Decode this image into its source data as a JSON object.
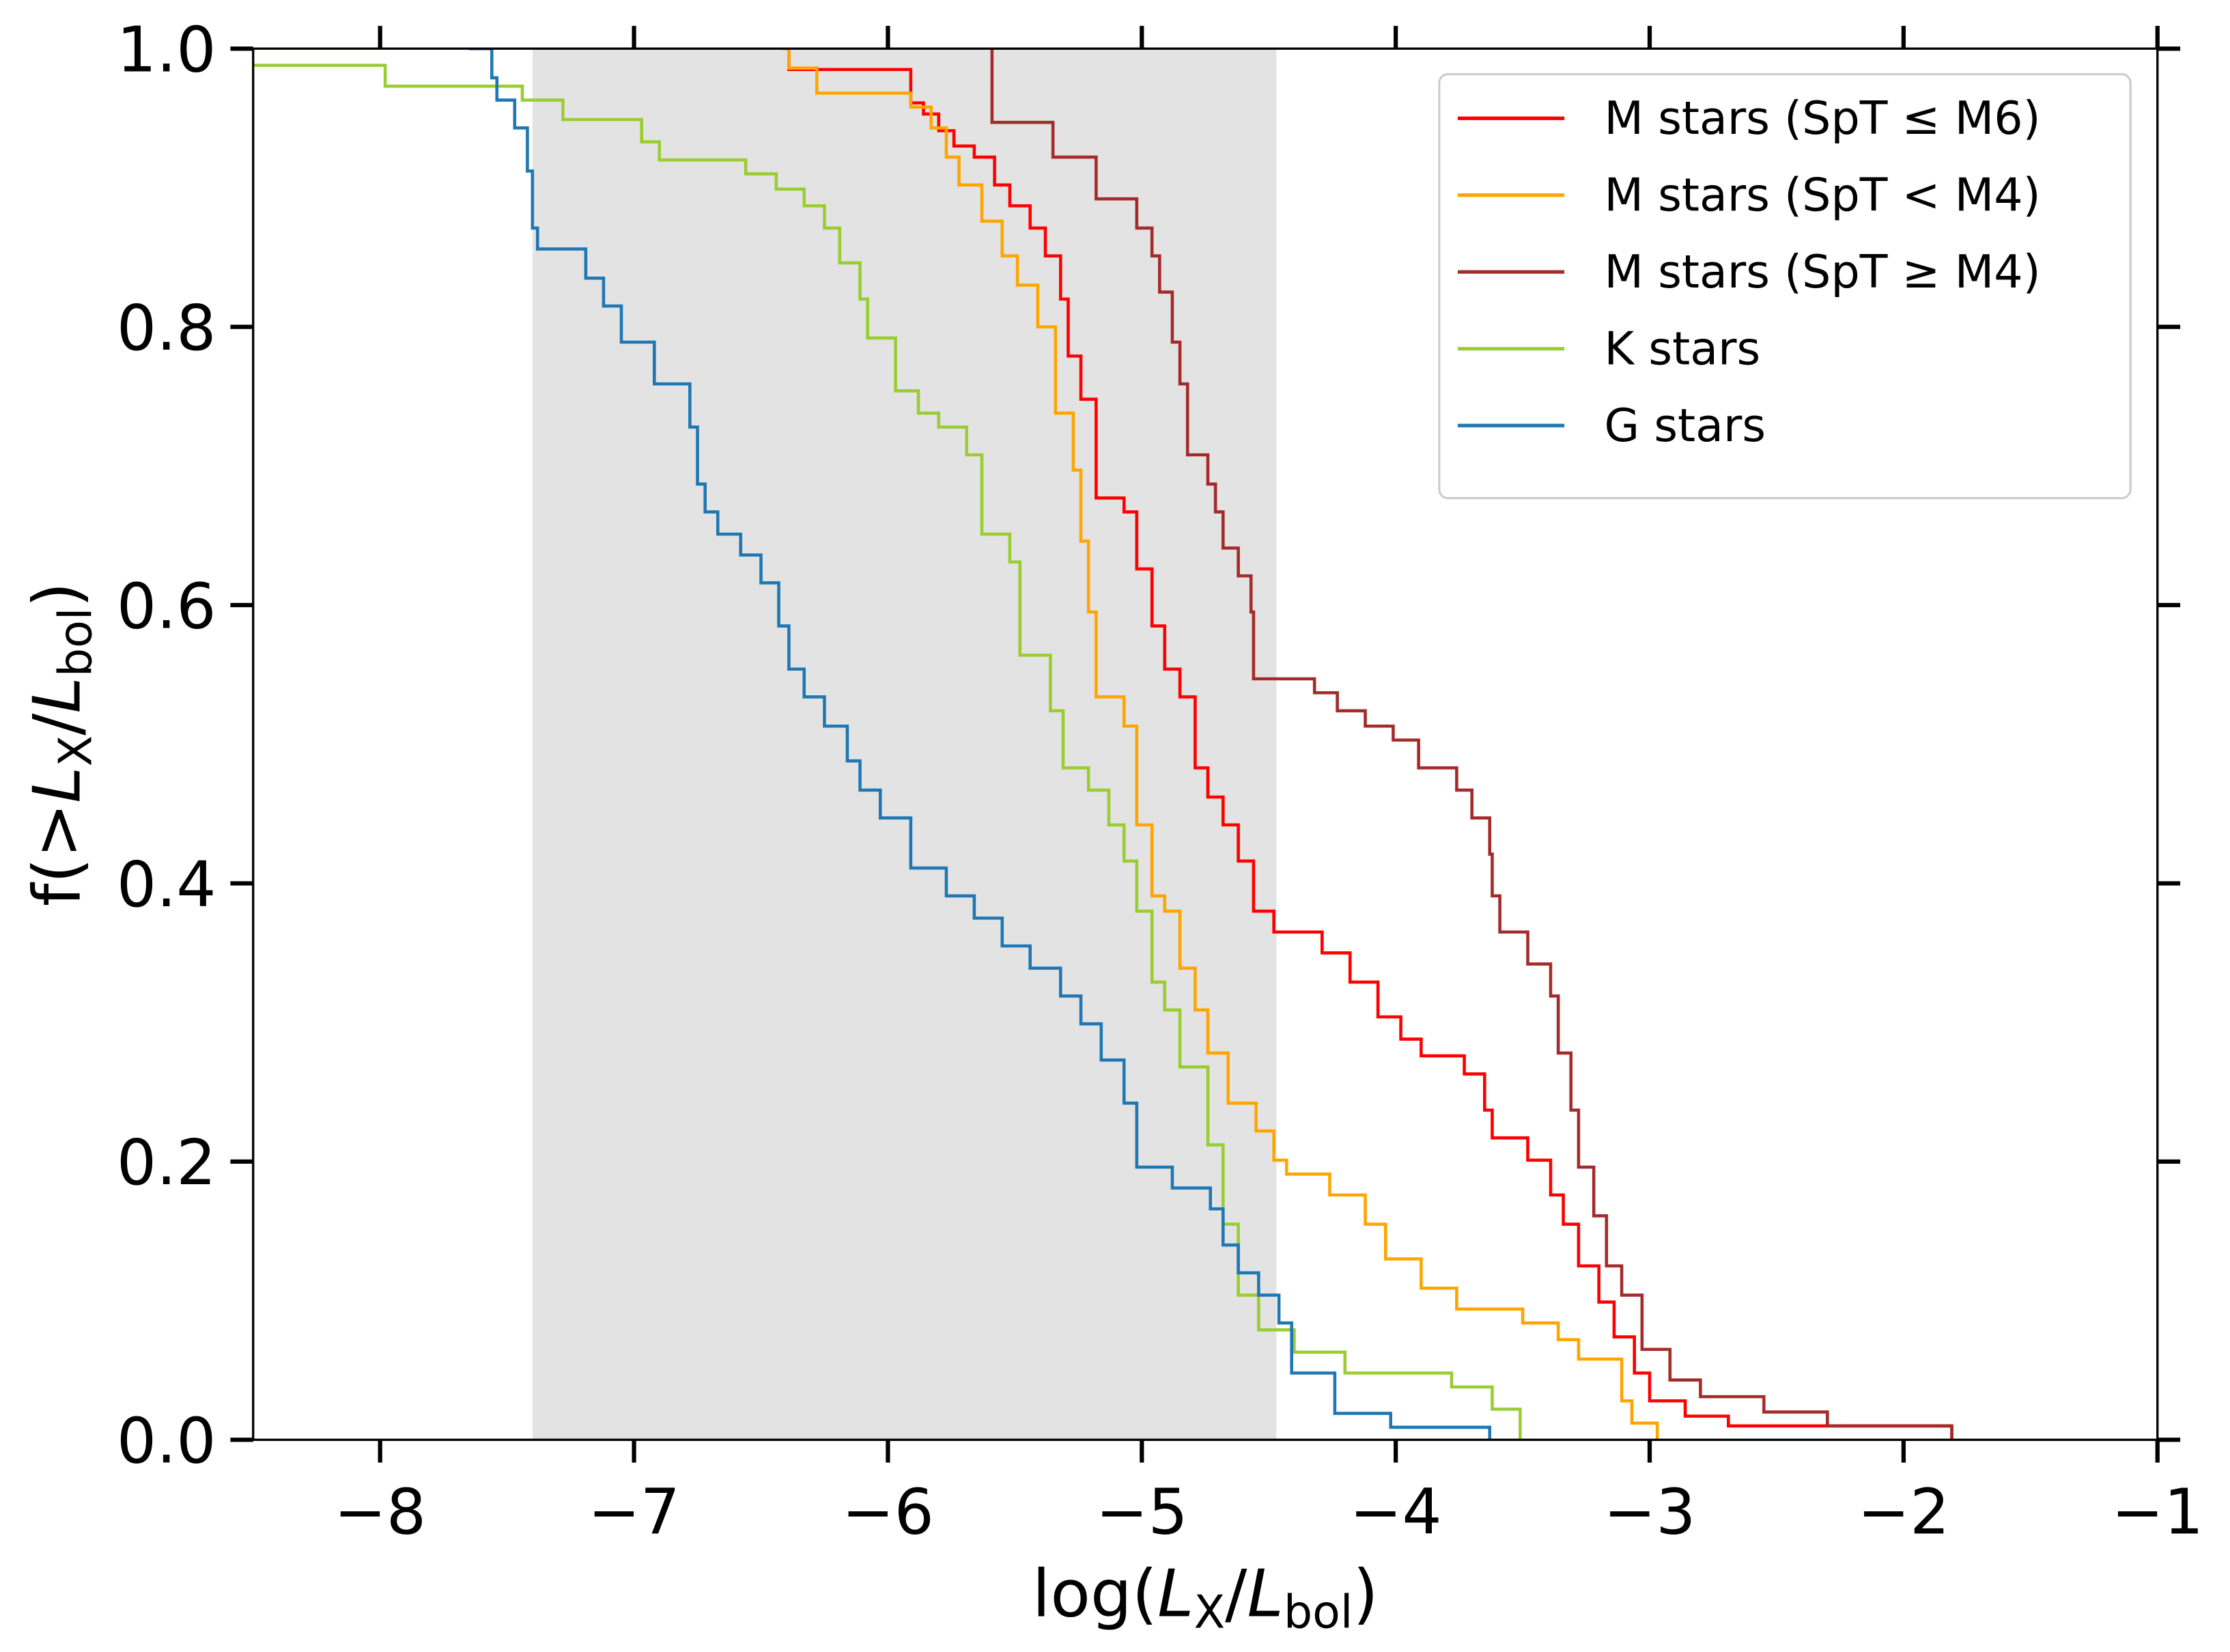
{
  "chart_data": {
    "type": "step",
    "xlabel": [
      "log(",
      "L",
      "X",
      "/",
      "L",
      "bol",
      ")"
    ],
    "ylabel": [
      "f(>",
      "L",
      "X",
      "/",
      "L",
      "bol",
      ")"
    ],
    "xlim": [
      -8.5,
      -1
    ],
    "ylim": [
      0,
      1
    ],
    "xticks": [
      {
        "value": -8,
        "label": "−8"
      },
      {
        "value": -7,
        "label": "−7"
      },
      {
        "value": -6,
        "label": "−6"
      },
      {
        "value": -5,
        "label": "−5"
      },
      {
        "value": -4,
        "label": "−4"
      },
      {
        "value": -3,
        "label": "−3"
      },
      {
        "value": -2,
        "label": "−2"
      },
      {
        "value": -1,
        "label": "−1"
      }
    ],
    "yticks": [
      {
        "value": 0,
        "label": "0.0"
      },
      0.2,
      0.4,
      0.6,
      0.8,
      {
        "value": 1,
        "label": "1.0"
      }
    ],
    "ticks_all_sides": true,
    "shade": {
      "range": [
        -7.4,
        -4.47
      ],
      "color": "#e3e3e3"
    },
    "legend": "upper right",
    "series": [
      {
        "name": "M stars (SpT ≤ M6)",
        "color": "#ff0000",
        "x": [
          -6.42,
          -6.39,
          -5.91,
          -5.86,
          -5.8,
          -5.74,
          -5.66,
          -5.58,
          -5.52,
          -5.44,
          -5.38,
          -5.32,
          -5.29,
          -5.24,
          -5.18,
          -5.07,
          -5.02,
          -4.96,
          -4.91,
          -4.85,
          -4.79,
          -4.74,
          -4.68,
          -4.62,
          -4.56,
          -4.48,
          -4.29,
          -4.18,
          -4.07,
          -3.98,
          -3.9,
          -3.73,
          -3.65,
          -3.62,
          -3.48,
          -3.39,
          -3.34,
          -3.28,
          -3.2,
          -3.14,
          -3.06,
          -3.0,
          -2.86,
          -2.69,
          -1.81
        ],
        "values": [
          1.0,
          0.985,
          0.961,
          0.953,
          0.941,
          0.93,
          0.922,
          0.902,
          0.887,
          0.871,
          0.851,
          0.82,
          0.779,
          0.748,
          0.677,
          0.667,
          0.626,
          0.585,
          0.554,
          0.534,
          0.483,
          0.462,
          0.442,
          0.416,
          0.38,
          0.365,
          0.35,
          0.329,
          0.304,
          0.288,
          0.276,
          0.263,
          0.237,
          0.217,
          0.201,
          0.176,
          0.155,
          0.125,
          0.099,
          0.074,
          0.048,
          0.028,
          0.017,
          0.01,
          0
        ]
      },
      {
        "name": "M stars (SpT < M4)",
        "color": "#ffa500",
        "x": [
          -6.42,
          -6.39,
          -6.28,
          -5.91,
          -5.83,
          -5.77,
          -5.72,
          -5.63,
          -5.55,
          -5.49,
          -5.41,
          -5.34,
          -5.27,
          -5.24,
          -5.21,
          -5.18,
          -5.07,
          -5.02,
          -4.96,
          -4.91,
          -4.85,
          -4.79,
          -4.74,
          -4.66,
          -4.55,
          -4.48,
          -4.43,
          -4.26,
          -4.12,
          -4.04,
          -3.9,
          -3.76,
          -3.5,
          -3.36,
          -3.28,
          -3.11,
          -3.07,
          -2.97
        ],
        "values": [
          1.0,
          0.986,
          0.968,
          0.958,
          0.943,
          0.922,
          0.902,
          0.876,
          0.851,
          0.83,
          0.8,
          0.738,
          0.697,
          0.646,
          0.595,
          0.534,
          0.513,
          0.442,
          0.391,
          0.38,
          0.339,
          0.309,
          0.278,
          0.242,
          0.222,
          0.201,
          0.191,
          0.176,
          0.155,
          0.13,
          0.109,
          0.094,
          0.084,
          0.072,
          0.058,
          0.028,
          0.012,
          0
        ]
      },
      {
        "name": "M stars (SpT ≥ M4)",
        "color": "#a52a2a",
        "x": [
          -5.59,
          -5.59,
          -5.35,
          -5.18,
          -5.02,
          -4.96,
          -4.93,
          -4.88,
          -4.85,
          -4.82,
          -4.74,
          -4.71,
          -4.68,
          -4.62,
          -4.57,
          -4.56,
          -4.32,
          -4.23,
          -4.12,
          -4.01,
          -3.91,
          -3.76,
          -3.7,
          -3.63,
          -3.62,
          -3.59,
          -3.48,
          -3.39,
          -3.36,
          -3.31,
          -3.28,
          -3.22,
          -3.17,
          -3.11,
          -3.03,
          -2.92,
          -2.8,
          -2.55,
          -2.3,
          -1.81
        ],
        "values": [
          1.0,
          0.947,
          0.922,
          0.892,
          0.871,
          0.851,
          0.825,
          0.789,
          0.759,
          0.708,
          0.687,
          0.667,
          0.641,
          0.621,
          0.595,
          0.547,
          0.537,
          0.524,
          0.513,
          0.503,
          0.483,
          0.467,
          0.447,
          0.421,
          0.391,
          0.365,
          0.342,
          0.319,
          0.278,
          0.237,
          0.196,
          0.161,
          0.125,
          0.104,
          0.065,
          0.043,
          0.031,
          0.02,
          0.01,
          0
        ]
      },
      {
        "name": "K stars",
        "color": "#9acd32",
        "x": [
          -8.5,
          -7.98,
          -7.44,
          -7.28,
          -6.97,
          -6.9,
          -6.56,
          -6.44,
          -6.33,
          -6.25,
          -6.19,
          -6.11,
          -6.08,
          -5.97,
          -5.88,
          -5.8,
          -5.69,
          -5.63,
          -5.52,
          -5.48,
          -5.36,
          -5.31,
          -5.21,
          -5.13,
          -5.07,
          -5.02,
          -4.96,
          -4.91,
          -4.85,
          -4.74,
          -4.68,
          -4.62,
          -4.54,
          -4.4,
          -4.2,
          -3.78,
          -3.62,
          -3.51
        ],
        "values": [
          0.988,
          0.973,
          0.963,
          0.949,
          0.933,
          0.92,
          0.91,
          0.899,
          0.887,
          0.871,
          0.846,
          0.82,
          0.792,
          0.754,
          0.738,
          0.728,
          0.708,
          0.651,
          0.631,
          0.564,
          0.524,
          0.483,
          0.467,
          0.442,
          0.416,
          0.38,
          0.329,
          0.309,
          0.268,
          0.212,
          0.155,
          0.104,
          0.079,
          0.063,
          0.048,
          0.038,
          0.022,
          0
        ]
      },
      {
        "name": "G stars",
        "color": "#1f77b4",
        "x": [
          -7.65,
          -7.56,
          -7.54,
          -7.47,
          -7.42,
          -7.4,
          -7.38,
          -7.19,
          -7.12,
          -7.05,
          -6.92,
          -6.78,
          -6.75,
          -6.72,
          -6.67,
          -6.58,
          -6.5,
          -6.43,
          -6.39,
          -6.33,
          -6.25,
          -6.16,
          -6.11,
          -6.03,
          -5.91,
          -5.77,
          -5.66,
          -5.55,
          -5.44,
          -5.32,
          -5.24,
          -5.16,
          -5.07,
          -5.02,
          -4.88,
          -4.73,
          -4.68,
          -4.62,
          -4.54,
          -4.46,
          -4.41,
          -4.24,
          -4.02,
          -3.63
        ],
        "values": [
          1.0,
          0.979,
          0.963,
          0.943,
          0.912,
          0.871,
          0.856,
          0.835,
          0.815,
          0.789,
          0.759,
          0.728,
          0.687,
          0.667,
          0.651,
          0.636,
          0.616,
          0.585,
          0.554,
          0.534,
          0.513,
          0.488,
          0.467,
          0.447,
          0.411,
          0.391,
          0.375,
          0.355,
          0.339,
          0.319,
          0.299,
          0.273,
          0.242,
          0.196,
          0.181,
          0.166,
          0.14,
          0.12,
          0.104,
          0.084,
          0.048,
          0.019,
          0.009,
          0
        ]
      }
    ]
  }
}
